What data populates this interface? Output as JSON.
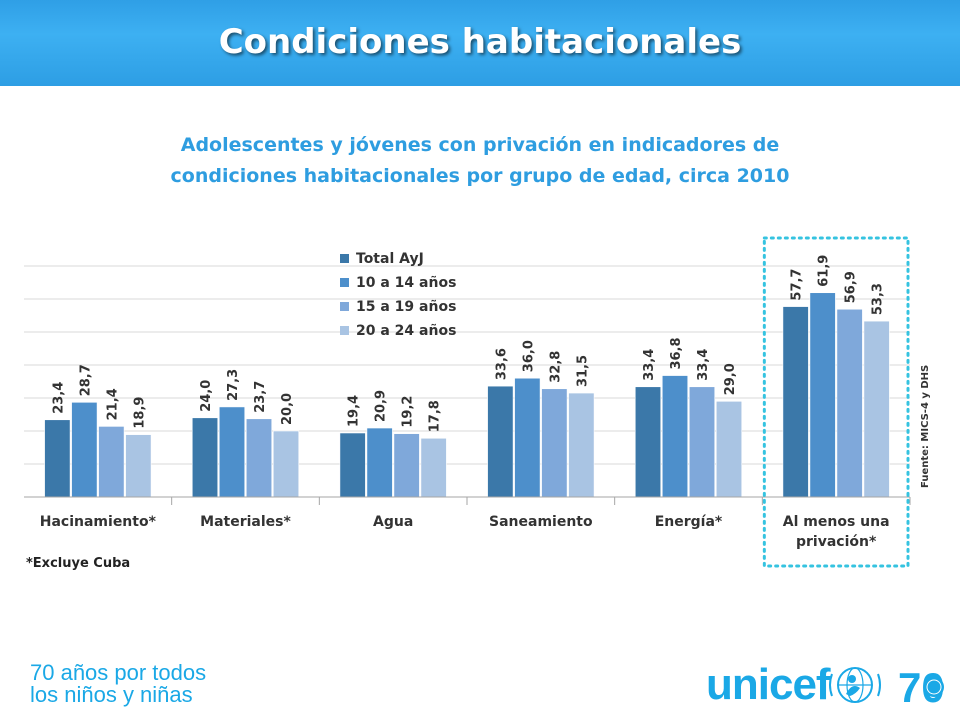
{
  "header": {
    "title": "Condiciones habitacionales"
  },
  "subtitle": {
    "line1": "Adolescentes y jóvenes con privación en indicadores de",
    "line2": "condiciones habitacionales por grupo de edad, circa 2010"
  },
  "footnote": "*Excluye Cuba",
  "source": "Fuente: MICS-4 y DHS",
  "footer": {
    "tagline_line1": "70 años por todos",
    "tagline_line2": "los niños y niñas",
    "logo_text": "unicef",
    "anniversary_text": "70"
  },
  "colors": {
    "header": "#2f9fe6",
    "accent": "#2e9de0",
    "series": [
      "#3b78a9",
      "#4d8fcb",
      "#7fa8da",
      "#a9c4e3"
    ],
    "highlight_border": "#35c3e0"
  },
  "chart_data": {
    "type": "bar",
    "title": "Adolescentes y jóvenes con privación en indicadores de condiciones habitacionales por grupo de edad, circa 2010",
    "categories": [
      [
        "Hacinamiento*"
      ],
      [
        "Materiales*"
      ],
      [
        "Agua"
      ],
      [
        "Saneamiento"
      ],
      [
        "Energía*"
      ],
      [
        "Al menos una",
        "privación*"
      ]
    ],
    "series": [
      {
        "name": "Total AyJ",
        "values": [
          23.4,
          24.0,
          19.4,
          33.6,
          33.4,
          57.7
        ],
        "labels": [
          "23,4",
          "24,0",
          "19,4",
          "33,6",
          "33,4",
          "57,7"
        ]
      },
      {
        "name": "10 a 14 años",
        "values": [
          28.7,
          27.3,
          20.9,
          36.0,
          36.8,
          61.9
        ],
        "labels": [
          "28,7",
          "27,3",
          "20,9",
          "36,0",
          "36,8",
          "61,9"
        ]
      },
      {
        "name": "15 a 19 años",
        "values": [
          21.4,
          23.7,
          19.2,
          32.8,
          33.4,
          56.9
        ],
        "labels": [
          "21,4",
          "23,7",
          "19,2",
          "32,8",
          "33,4",
          "56,9"
        ]
      },
      {
        "name": "20 a 24 años",
        "values": [
          18.9,
          20.0,
          17.8,
          31.5,
          29.0,
          53.3
        ],
        "labels": [
          "18,9",
          "20,0",
          "17,8",
          "31,5",
          "29,0",
          "53,3"
        ]
      }
    ],
    "ylim": [
      0,
      70
    ],
    "grid": true,
    "legend": "top-center",
    "highlighted_category": 5
  }
}
